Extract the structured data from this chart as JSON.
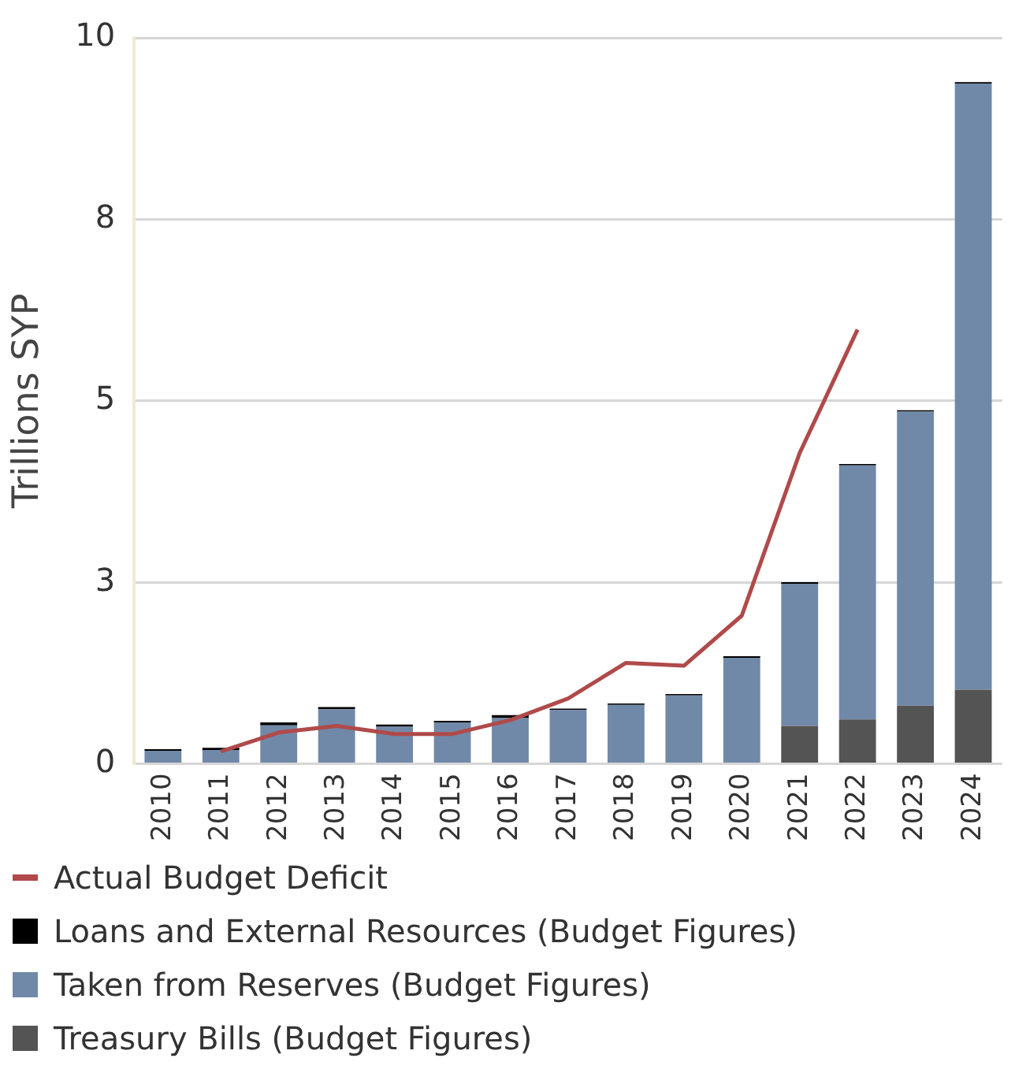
{
  "chart_data": {
    "type": "bar",
    "stacked": true,
    "ylabel": "Trillions SYP",
    "categories": [
      "2010",
      "2011",
      "2012",
      "2013",
      "2014",
      "2015",
      "2016",
      "2017",
      "2018",
      "2019",
      "2020",
      "2021",
      "2022",
      "2023",
      "2024"
    ],
    "series": [
      {
        "name": "Treasury Bills (Budget Figures)",
        "color": "#545454",
        "values": [
          0,
          0,
          0,
          0,
          0,
          0,
          0,
          0,
          0,
          0,
          0,
          0.52,
          0.61,
          0.8,
          1.02
        ]
      },
      {
        "name": "Taken from Reserves (Budget Figures)",
        "color": "#7189a8",
        "values": [
          0.18,
          0.19,
          0.53,
          0.75,
          0.51,
          0.57,
          0.63,
          0.74,
          0.81,
          0.94,
          1.46,
          1.96,
          3.5,
          4.05,
          8.35
        ]
      },
      {
        "name": "Loans and External Resources (Budget Figures)",
        "color": "#000000",
        "values": [
          0.02,
          0.03,
          0.04,
          0.03,
          0.03,
          0.02,
          0.04,
          0.02,
          0.02,
          0.02,
          0.02,
          0.02,
          0.02,
          0.02,
          0.02
        ]
      },
      {
        "name": "Actual Budget Deficit",
        "type": "line",
        "color": "#b04a4a",
        "values": [
          null,
          0.17,
          0.43,
          0.52,
          0.41,
          0.41,
          0.6,
          0.9,
          1.39,
          1.35,
          2.04,
          4.28,
          5.98,
          null,
          null
        ]
      }
    ],
    "ylim": [
      0,
      10
    ],
    "yticks": [
      0,
      {
        "value": 2.5,
        "label": "3"
      },
      5,
      {
        "value": 7.5,
        "label": "8"
      },
      10
    ],
    "grid": "y",
    "legend": "bottom"
  }
}
